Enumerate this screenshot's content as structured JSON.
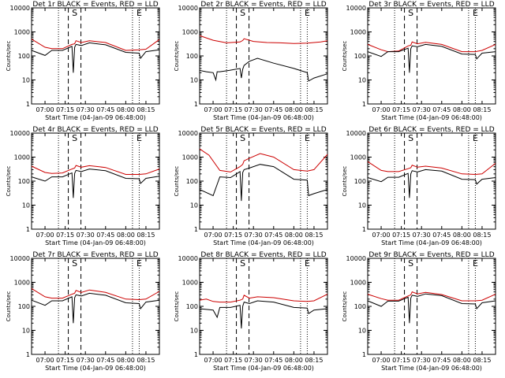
{
  "chart_data": [
    {
      "type": "line",
      "title": "Det 1r BLACK = Events, RED = LLD",
      "ylabel": "Counts/sec",
      "xlabel": "Start Time (04-Jan-09 06:48:00)",
      "yscale": "log",
      "ylim": [
        1,
        10000
      ],
      "xlim": [
        "06:50",
        "08:25"
      ],
      "x_tick_labels": [
        "07:00",
        "07:15",
        "07:30",
        "07:45",
        "08:00",
        "08:15"
      ],
      "y_tick_labels": [
        "1",
        "10",
        "100",
        "1000",
        "10000"
      ],
      "markers": [
        {
          "label": "S",
          "x": "07:22"
        },
        {
          "label": "E",
          "x": "08:10"
        }
      ],
      "series": [
        {
          "color": "#cc0000",
          "x": [
            "06:50",
            "07:00",
            "07:05",
            "07:13",
            "07:20",
            "07:22",
            "07:23",
            "07:27",
            "07:33",
            "07:45",
            "08:00",
            "08:10",
            "08:15",
            "08:25"
          ],
          "y": [
            500,
            230,
            200,
            200,
            300,
            320,
            430,
            360,
            430,
            360,
            170,
            180,
            190,
            480
          ]
        },
        {
          "color": "#000000",
          "x": [
            "06:50",
            "07:00",
            "07:05",
            "07:13",
            "07:20",
            "07:21",
            "07:22",
            "07:23",
            "07:27",
            "07:33",
            "07:45",
            "08:00",
            "08:10",
            "08:11",
            "08:15",
            "08:25"
          ],
          "y": [
            170,
            105,
            170,
            170,
            250,
            20,
            230,
            300,
            270,
            350,
            290,
            140,
            130,
            80,
            150,
            180
          ]
        }
      ]
    },
    {
      "type": "line",
      "title": "Det 2r BLACK = Events, RED = LLD",
      "ylabel": "Counts/sec",
      "xlabel": "Start Time (04-Jan-09 06:48:00)",
      "yscale": "log",
      "ylim": [
        1,
        10000
      ],
      "xlim": [
        "06:50",
        "08:25"
      ],
      "x_tick_labels": [
        "07:00",
        "07:15",
        "07:30",
        "07:45",
        "08:00",
        "08:15"
      ],
      "y_tick_labels": [
        "1",
        "10",
        "100",
        "1000",
        "10000"
      ],
      "markers": [
        {
          "label": "S",
          "x": "07:22"
        },
        {
          "label": "E",
          "x": "08:10"
        }
      ],
      "series": [
        {
          "color": "#cc0000",
          "x": [
            "06:50",
            "07:00",
            "07:10",
            "07:20",
            "07:22",
            "07:23",
            "07:30",
            "07:40",
            "07:50",
            "08:00",
            "08:10",
            "08:20",
            "08:25"
          ],
          "y": [
            700,
            450,
            350,
            380,
            440,
            520,
            400,
            360,
            350,
            330,
            340,
            380,
            430
          ]
        },
        {
          "color": "#000000",
          "x": [
            "06:50",
            "06:55",
            "07:00",
            "07:02",
            "07:03",
            "07:05",
            "07:12",
            "07:20",
            "07:21",
            "07:22",
            "07:23",
            "07:27",
            "07:33",
            "07:45",
            "08:00",
            "08:10",
            "08:11",
            "08:15",
            "08:25"
          ],
          "y": [
            25,
            22,
            20,
            10,
            22,
            22,
            25,
            30,
            12,
            28,
            40,
            60,
            80,
            50,
            30,
            20,
            9,
            12,
            18
          ]
        }
      ]
    },
    {
      "type": "line",
      "title": "Det 3r BLACK = Events, RED = LLD",
      "ylabel": "Counts/sec",
      "xlabel": "Start Time (04-Jan-09 06:48:00)",
      "yscale": "log",
      "ylim": [
        1,
        10000
      ],
      "xlim": [
        "06:50",
        "08:25"
      ],
      "x_tick_labels": [
        "07:00",
        "07:15",
        "07:30",
        "07:45",
        "08:00",
        "08:15"
      ],
      "y_tick_labels": [
        "1",
        "10",
        "100",
        "1000",
        "10000"
      ],
      "markers": [
        {
          "label": "S",
          "x": "07:22"
        },
        {
          "label": "E",
          "x": "08:10"
        }
      ],
      "series": [
        {
          "color": "#cc0000",
          "x": [
            "06:50",
            "07:00",
            "07:05",
            "07:13",
            "07:20",
            "07:22",
            "07:23",
            "07:27",
            "07:33",
            "07:45",
            "08:00",
            "08:10",
            "08:15",
            "08:25"
          ],
          "y": [
            300,
            180,
            150,
            160,
            260,
            280,
            380,
            320,
            370,
            300,
            150,
            150,
            170,
            300
          ]
        },
        {
          "color": "#000000",
          "x": [
            "06:50",
            "07:00",
            "07:05",
            "07:13",
            "07:20",
            "07:21",
            "07:22",
            "07:23",
            "07:27",
            "07:33",
            "07:45",
            "08:00",
            "08:10",
            "08:11",
            "08:15",
            "08:25"
          ],
          "y": [
            150,
            95,
            150,
            150,
            210,
            20,
            200,
            260,
            240,
            300,
            250,
            120,
            115,
            75,
            130,
            150
          ]
        }
      ]
    },
    {
      "type": "line",
      "title": "Det 4r BLACK = Events, RED = LLD",
      "ylabel": "Counts/sec",
      "xlabel": "Start Time (04-Jan-09 06:48:00)",
      "yscale": "log",
      "ylim": [
        1,
        10000
      ],
      "xlim": [
        "06:50",
        "08:25"
      ],
      "x_tick_labels": [
        "07:00",
        "07:15",
        "07:30",
        "07:45",
        "08:00",
        "08:15"
      ],
      "y_tick_labels": [
        "1",
        "10",
        "100",
        "1000",
        "10000"
      ],
      "markers": [
        {
          "label": "S",
          "x": "07:22"
        },
        {
          "label": "E",
          "x": "08:10"
        }
      ],
      "series": [
        {
          "color": "#cc0000",
          "x": [
            "06:50",
            "07:00",
            "07:05",
            "07:13",
            "07:20",
            "07:22",
            "07:23",
            "07:27",
            "07:33",
            "07:45",
            "08:00",
            "08:10",
            "08:15",
            "08:25"
          ],
          "y": [
            420,
            230,
            210,
            220,
            320,
            350,
            450,
            380,
            440,
            370,
            190,
            190,
            200,
            320
          ]
        },
        {
          "color": "#000000",
          "x": [
            "06:50",
            "07:00",
            "07:05",
            "07:13",
            "07:20",
            "07:21",
            "07:22",
            "07:23",
            "07:27",
            "07:33",
            "07:45",
            "08:00",
            "08:10",
            "08:11",
            "08:15",
            "08:25"
          ],
          "y": [
            150,
            100,
            150,
            150,
            220,
            20,
            210,
            280,
            250,
            320,
            270,
            130,
            125,
            80,
            130,
            160
          ]
        }
      ]
    },
    {
      "type": "line",
      "title": "Det 5r BLACK = Events, RED = LLD",
      "ylabel": "Counts/sec",
      "xlabel": "Start Time (04-Jan-09 06:48:00)",
      "yscale": "log",
      "ylim": [
        1,
        10000
      ],
      "xlim": [
        "06:50",
        "08:25"
      ],
      "x_tick_labels": [
        "07:00",
        "07:15",
        "07:30",
        "07:45",
        "08:00",
        "08:15"
      ],
      "y_tick_labels": [
        "1",
        "10",
        "100",
        "1000",
        "10000"
      ],
      "markers": [
        {
          "label": "S",
          "x": "07:22"
        },
        {
          "label": "E",
          "x": "08:10"
        }
      ],
      "series": [
        {
          "color": "#cc0000",
          "x": [
            "06:50",
            "06:57",
            "07:05",
            "07:13",
            "07:20",
            "07:22",
            "07:23",
            "07:27",
            "07:35",
            "07:45",
            "08:00",
            "08:10",
            "08:15",
            "08:25"
          ],
          "y": [
            2200,
            1200,
            280,
            240,
            400,
            500,
            700,
            900,
            1400,
            1000,
            300,
            260,
            300,
            1300
          ]
        },
        {
          "color": "#000000",
          "x": [
            "06:50",
            "07:00",
            "07:05",
            "07:13",
            "07:20",
            "07:21",
            "07:22",
            "07:23",
            "07:27",
            "07:35",
            "07:45",
            "08:00",
            "08:10",
            "08:11",
            "08:15",
            "08:25"
          ],
          "y": [
            45,
            25,
            150,
            140,
            250,
            15,
            230,
            300,
            350,
            500,
            400,
            120,
            110,
            25,
            30,
            45
          ]
        }
      ]
    },
    {
      "type": "line",
      "title": "Det 6r BLACK = Events, RED = LLD",
      "ylabel": "Counts/sec",
      "xlabel": "Start Time (04-Jan-09 06:48:00)",
      "yscale": "log",
      "ylim": [
        1,
        10000
      ],
      "xlim": [
        "06:50",
        "08:25"
      ],
      "x_tick_labels": [
        "07:00",
        "07:15",
        "07:30",
        "07:45",
        "08:00",
        "08:15"
      ],
      "y_tick_labels": [
        "1",
        "10",
        "100",
        "1000",
        "10000"
      ],
      "markers": [
        {
          "label": "S",
          "x": "07:22"
        },
        {
          "label": "E",
          "x": "08:10"
        }
      ],
      "series": [
        {
          "color": "#cc0000",
          "x": [
            "06:50",
            "07:00",
            "07:05",
            "07:13",
            "07:20",
            "07:22",
            "07:23",
            "07:27",
            "07:33",
            "07:45",
            "08:00",
            "08:10",
            "08:15",
            "08:25"
          ],
          "y": [
            650,
            280,
            250,
            250,
            330,
            360,
            460,
            380,
            420,
            350,
            200,
            190,
            200,
            550
          ]
        },
        {
          "color": "#000000",
          "x": [
            "06:50",
            "07:00",
            "07:05",
            "07:13",
            "07:20",
            "07:21",
            "07:22",
            "07:23",
            "07:27",
            "07:33",
            "07:45",
            "08:00",
            "08:10",
            "08:11",
            "08:15",
            "08:25"
          ],
          "y": [
            140,
            95,
            145,
            145,
            210,
            20,
            200,
            270,
            240,
            300,
            260,
            120,
            115,
            75,
            120,
            140
          ]
        }
      ]
    },
    {
      "type": "line",
      "title": "Det 7r BLACK = Events, RED = LLD",
      "ylabel": "Counts/sec",
      "xlabel": "Start Time (04-Jan-09 06:48:00)",
      "yscale": "log",
      "ylim": [
        1,
        10000
      ],
      "xlim": [
        "06:50",
        "08:25"
      ],
      "x_tick_labels": [
        "07:00",
        "07:15",
        "07:30",
        "07:45",
        "08:00",
        "08:15"
      ],
      "y_tick_labels": [
        "1",
        "10",
        "100",
        "1000",
        "10000"
      ],
      "markers": [
        {
          "label": "S",
          "x": "07:22"
        },
        {
          "label": "E",
          "x": "08:10"
        }
      ],
      "series": [
        {
          "color": "#cc0000",
          "x": [
            "06:50",
            "07:00",
            "07:05",
            "07:13",
            "07:20",
            "07:22",
            "07:23",
            "07:27",
            "07:33",
            "07:45",
            "08:00",
            "08:10",
            "08:15",
            "08:25"
          ],
          "y": [
            550,
            250,
            220,
            220,
            320,
            350,
            460,
            380,
            480,
            380,
            200,
            190,
            200,
            420
          ]
        },
        {
          "color": "#000000",
          "x": [
            "06:50",
            "07:00",
            "07:05",
            "07:13",
            "07:20",
            "07:21",
            "07:22",
            "07:23",
            "07:27",
            "07:33",
            "07:45",
            "08:00",
            "08:10",
            "08:11",
            "08:15",
            "08:25"
          ],
          "y": [
            180,
            110,
            170,
            170,
            250,
            20,
            230,
            300,
            270,
            350,
            290,
            140,
            130,
            80,
            150,
            180
          ]
        }
      ]
    },
    {
      "type": "line",
      "title": "Det 8r BLACK = Events, RED = LLD",
      "ylabel": "Counts/sec",
      "xlabel": "Start Time (04-Jan-09 06:48:00)",
      "yscale": "log",
      "ylim": [
        1,
        10000
      ],
      "xlim": [
        "06:50",
        "08:25"
      ],
      "x_tick_labels": [
        "07:00",
        "07:15",
        "07:30",
        "07:45",
        "08:00",
        "08:15"
      ],
      "y_tick_labels": [
        "1",
        "10",
        "100",
        "1000",
        "10000"
      ],
      "markers": [
        {
          "label": "S",
          "x": "07:22"
        },
        {
          "label": "E",
          "x": "08:10"
        }
      ],
      "series": [
        {
          "color": "#cc0000",
          "x": [
            "06:50",
            "06:55",
            "07:00",
            "07:05",
            "07:13",
            "07:20",
            "07:22",
            "07:23",
            "07:27",
            "07:33",
            "07:45",
            "08:00",
            "08:10",
            "08:15",
            "08:25"
          ],
          "y": [
            180,
            200,
            160,
            150,
            150,
            180,
            200,
            290,
            220,
            250,
            230,
            170,
            160,
            170,
            320
          ]
        },
        {
          "color": "#000000",
          "x": [
            "06:50",
            "07:00",
            "07:03",
            "07:05",
            "07:13",
            "07:20",
            "07:21",
            "07:22",
            "07:23",
            "07:27",
            "07:33",
            "07:45",
            "08:00",
            "08:10",
            "08:11",
            "08:15",
            "08:25"
          ],
          "y": [
            80,
            70,
            35,
            90,
            90,
            110,
            12,
            100,
            150,
            130,
            170,
            150,
            90,
            85,
            50,
            70,
            80
          ]
        }
      ]
    },
    {
      "type": "line",
      "title": "Det 9r BLACK = Events, RED = LLD",
      "ylabel": "Counts/sec",
      "xlabel": "Start Time (04-Jan-09 06:48:00)",
      "yscale": "log",
      "ylim": [
        1,
        10000
      ],
      "xlim": [
        "06:50",
        "08:25"
      ],
      "x_tick_labels": [
        "07:00",
        "07:15",
        "07:30",
        "07:45",
        "08:00",
        "08:15"
      ],
      "y_tick_labels": [
        "1",
        "10",
        "100",
        "1000",
        "10000"
      ],
      "markers": [
        {
          "label": "S",
          "x": "07:22"
        },
        {
          "label": "E",
          "x": "08:10"
        }
      ],
      "series": [
        {
          "color": "#cc0000",
          "x": [
            "06:50",
            "07:00",
            "07:05",
            "07:13",
            "07:20",
            "07:22",
            "07:23",
            "07:27",
            "07:33",
            "07:45",
            "08:00",
            "08:10",
            "08:15",
            "08:25"
          ],
          "y": [
            320,
            210,
            180,
            180,
            270,
            300,
            400,
            330,
            380,
            310,
            170,
            170,
            180,
            320
          ]
        },
        {
          "color": "#000000",
          "x": [
            "06:50",
            "07:00",
            "07:05",
            "07:13",
            "07:20",
            "07:21",
            "07:22",
            "07:23",
            "07:27",
            "07:33",
            "07:45",
            "08:00",
            "08:10",
            "08:11",
            "08:15",
            "08:25"
          ],
          "y": [
            170,
            100,
            165,
            165,
            240,
            20,
            220,
            290,
            260,
            330,
            280,
            130,
            125,
            80,
            140,
            170
          ]
        }
      ]
    }
  ]
}
